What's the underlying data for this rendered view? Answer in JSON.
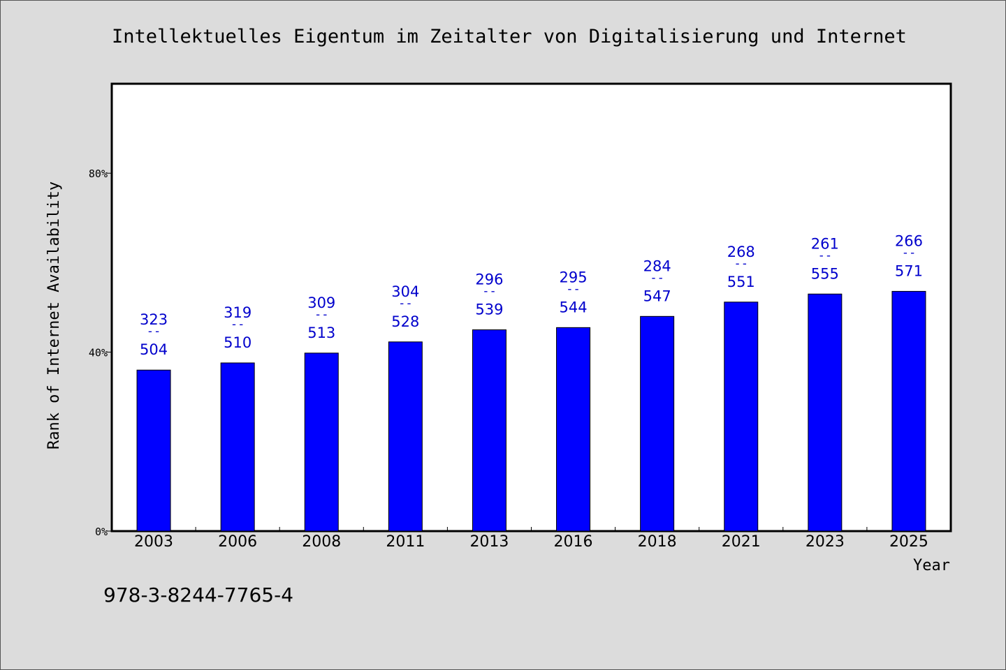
{
  "chart_data": {
    "type": "bar",
    "title": "Intellektuelles Eigentum im Zeitalter von Digitalisierung und Internet",
    "xlabel": "Year",
    "ylabel": "Rank of Internet Availability",
    "categories": [
      "2003",
      "2006",
      "2008",
      "2011",
      "2013",
      "2016",
      "2018",
      "2021",
      "2023",
      "2025"
    ],
    "values": [
      36,
      37.6,
      39.8,
      42.3,
      45,
      45.5,
      48,
      51.2,
      53,
      53.6
    ],
    "labels_top": [
      "323",
      "319",
      "309",
      "304",
      "296",
      "295",
      "284",
      "268",
      "261",
      "266"
    ],
    "labels_sep": "--",
    "labels_bottom": [
      "504",
      "510",
      "513",
      "528",
      "539",
      "544",
      "547",
      "551",
      "555",
      "571"
    ],
    "ylim": [
      0,
      100
    ],
    "yticks": [
      0,
      40,
      80
    ],
    "ytick_labels": [
      "0%",
      "40%",
      "80%"
    ],
    "grid": false,
    "colors": {
      "bar": "#0000ff",
      "label": "#0000cc",
      "background": "#dcdcdc",
      "plot_bg": "#ffffff"
    }
  },
  "footer": {
    "isbn": "978-3-8244-7765-4"
  }
}
